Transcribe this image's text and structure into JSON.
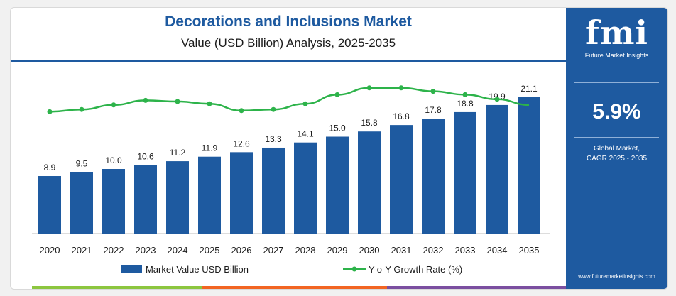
{
  "header": {
    "title": "Decorations and Inclusions Market",
    "subtitle": "Value (USD Billion) Analysis, 2025-2035"
  },
  "sidebar": {
    "logo_text": "fmi",
    "logo_subtitle": "Future Market Insights",
    "cagr_value": "5.9%",
    "cagr_label_line1": "Global Market,",
    "cagr_label_line2": "CAGR 2025 - 2035",
    "url": "www.futuremarketinsights.com"
  },
  "colors": {
    "bar": "#1e5aa0",
    "line": "#2db34a",
    "brand": "#1e5aa0"
  },
  "chart_data": {
    "type": "bar",
    "categories": [
      "2020",
      "2021",
      "2022",
      "2023",
      "2024",
      "2025",
      "2026",
      "2027",
      "2028",
      "2029",
      "2030",
      "2031",
      "2032",
      "2033",
      "2034",
      "2035"
    ],
    "series": [
      {
        "name": "Market Value USD Billion",
        "type": "bar",
        "values": [
          8.9,
          9.5,
          10.0,
          10.6,
          11.2,
          11.9,
          12.6,
          13.3,
          14.1,
          15.0,
          15.8,
          16.8,
          17.8,
          18.8,
          19.9,
          21.1
        ],
        "labels": [
          "8.9",
          "9.5",
          "10.0",
          "10.6",
          "11.2",
          "11.9",
          "12.6",
          "13.3",
          "14.1",
          "15.0",
          "15.8",
          "16.8",
          "17.8",
          "18.8",
          "19.9",
          "21.1"
        ]
      },
      {
        "name": "Y-o-Y Growth Rate (%)",
        "type": "line",
        "values": [
          5.6,
          5.8,
          6.2,
          6.6,
          6.5,
          6.3,
          5.7,
          5.8,
          6.3,
          7.1,
          7.7,
          7.7,
          7.4,
          7.1,
          6.7,
          6.2
        ]
      }
    ],
    "ylim": [
      0,
      21.1
    ],
    "grid": false,
    "legend": "bottom"
  }
}
